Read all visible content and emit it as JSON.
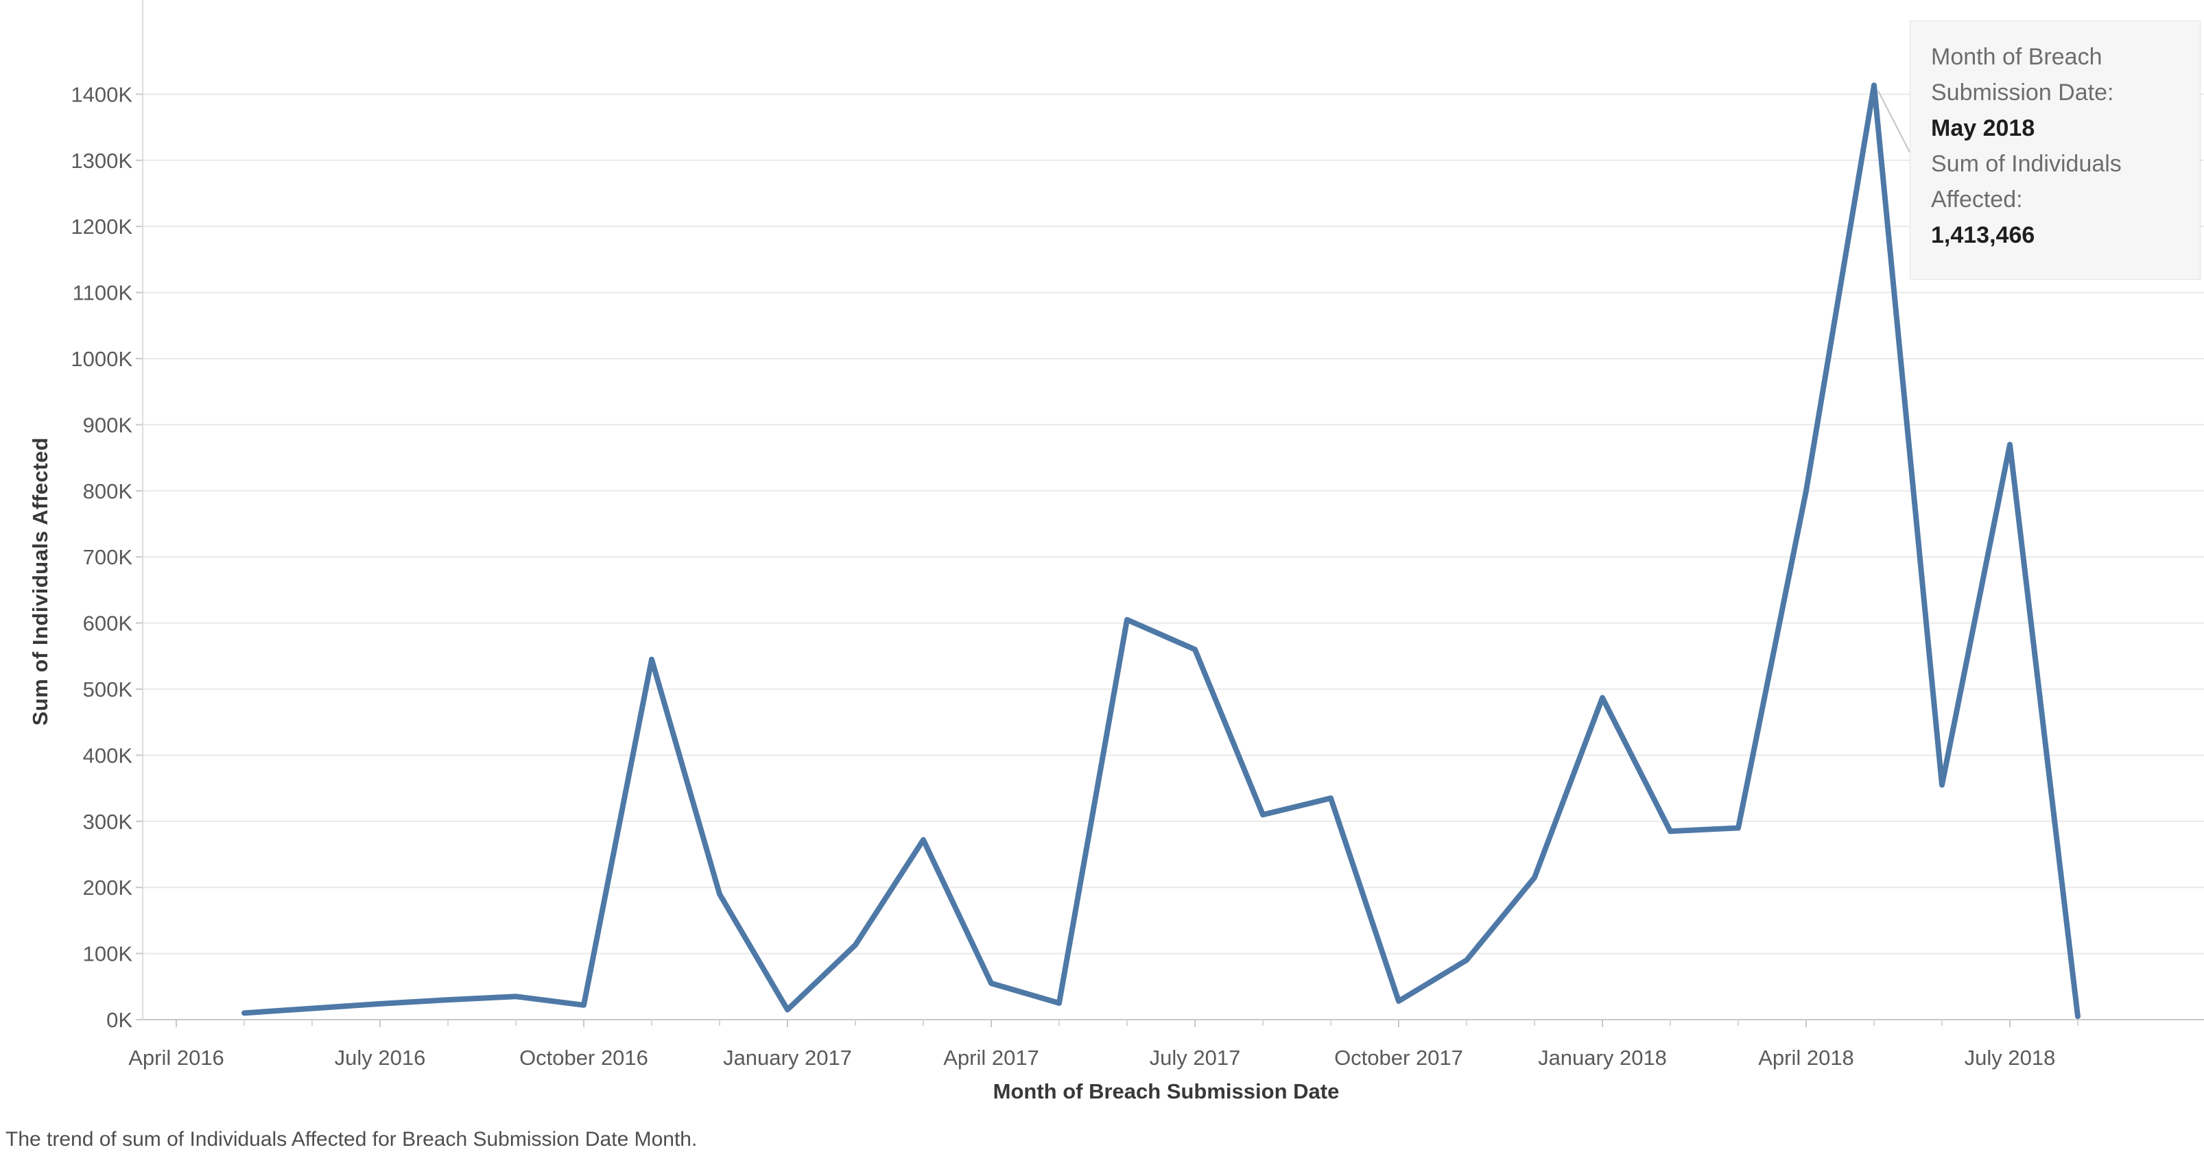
{
  "chart_data": {
    "type": "line",
    "title": "",
    "xlabel": "Month of Breach Submission Date",
    "ylabel": "Sum of Individuals Affected",
    "x": [
      "May 2016",
      "June 2016",
      "July 2016",
      "August 2016",
      "September 2016",
      "October 2016",
      "November 2016",
      "December 2016",
      "January 2017",
      "February 2017",
      "March 2017",
      "April 2017",
      "May 2017",
      "June 2017",
      "July 2017",
      "August 2017",
      "September 2017",
      "October 2017",
      "November 2017",
      "December 2017",
      "January 2018",
      "February 2018",
      "March 2018",
      "April 2018",
      "May 2018",
      "June 2018",
      "July 2018",
      "August 2018"
    ],
    "values": [
      10000,
      17000,
      24000,
      30000,
      35000,
      22000,
      545000,
      190000,
      15000,
      113000,
      272000,
      55000,
      25000,
      605000,
      560000,
      310000,
      335000,
      28000,
      90000,
      215000,
      487000,
      285000,
      290000,
      800000,
      1413466,
      355000,
      870000,
      5000
    ],
    "x_start_offset": 1,
    "x_tick_labels": [
      "April 2016",
      "July 2016",
      "October 2016",
      "January 2017",
      "April 2017",
      "July 2017",
      "October 2017",
      "January 2018",
      "April 2018",
      "July 2018"
    ],
    "x_tick_month_offsets": [
      0,
      3,
      6,
      9,
      12,
      15,
      18,
      21,
      24,
      27
    ],
    "x_minor_tick_months": 29,
    "y_ticks": [
      {
        "label": "0K",
        "value": 0
      },
      {
        "label": "100K",
        "value": 100000
      },
      {
        "label": "200K",
        "value": 200000
      },
      {
        "label": "300K",
        "value": 300000
      },
      {
        "label": "400K",
        "value": 400000
      },
      {
        "label": "500K",
        "value": 500000
      },
      {
        "label": "600K",
        "value": 600000
      },
      {
        "label": "700K",
        "value": 700000
      },
      {
        "label": "800K",
        "value": 800000
      },
      {
        "label": "900K",
        "value": 900000
      },
      {
        "label": "1000K",
        "value": 1000000
      },
      {
        "label": "1100K",
        "value": 1100000
      },
      {
        "label": "1200K",
        "value": 1200000
      },
      {
        "label": "1300K",
        "value": 1300000
      },
      {
        "label": "1400K",
        "value": 1400000
      }
    ],
    "ylim": [
      0,
      1462000
    ],
    "grid": "horizontal",
    "legend": "none",
    "line_color": "#4e79a7",
    "grid_color": "#e9e9e9",
    "axis_line_color": "#c9c9c9",
    "tick_label_color": "#5a5a5a"
  },
  "tooltip": {
    "lines": [
      {
        "label": "Month of Breach Submission Date:",
        "value": "May 2018"
      },
      {
        "label": "Sum of Individuals Affected:",
        "value": "1,413,466"
      }
    ]
  },
  "caption": "The trend of sum of Individuals Affected for Breach Submission Date Month."
}
